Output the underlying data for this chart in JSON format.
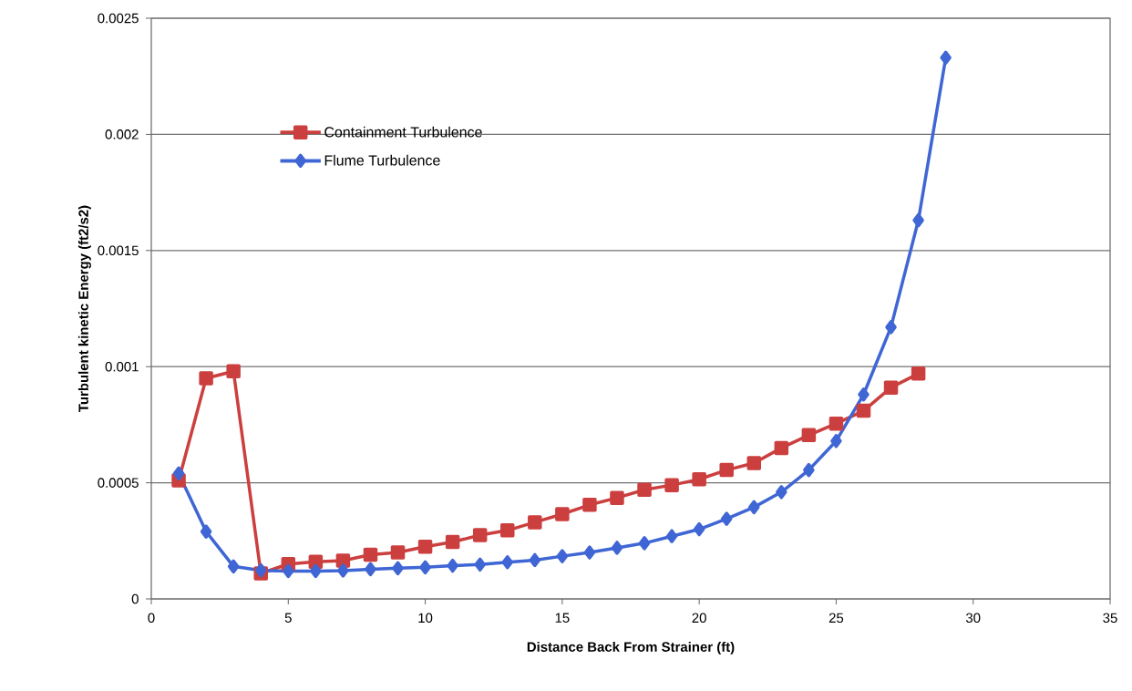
{
  "chart_data": {
    "type": "line",
    "xlabel": "Distance Back From Strainer (ft)",
    "ylabel": "Turbulent kinetic Energy (ft2/s2)",
    "xlim": [
      0,
      35
    ],
    "xticks": [
      0,
      5,
      10,
      15,
      20,
      25,
      30,
      35
    ],
    "ylim": [
      0,
      0.0025
    ],
    "yticks": [
      0,
      0.0005,
      0.001,
      0.0015,
      0.002,
      0.0025
    ],
    "grid": "y",
    "legend": "top left",
    "line_style": "solid",
    "series": [
      {
        "name": "Containment Turbulence",
        "color": "#cc3f3f",
        "marker": "square",
        "x": [
          1,
          2,
          3,
          4,
          5,
          6,
          7,
          8,
          9,
          10,
          11,
          12,
          13,
          14,
          15,
          16,
          17,
          18,
          19,
          20,
          21,
          22,
          23,
          24,
          25,
          26,
          27,
          28
        ],
        "values": [
          0.00051,
          0.00095,
          0.00098,
          0.00011,
          0.00015,
          0.00016,
          0.000165,
          0.00019,
          0.0002,
          0.000225,
          0.000245,
          0.000275,
          0.000295,
          0.00033,
          0.000365,
          0.000405,
          0.000435,
          0.00047,
          0.00049,
          0.000515,
          0.000555,
          0.000585,
          0.00065,
          0.000705,
          0.000755,
          0.00081,
          0.00091,
          0.00097
        ]
      },
      {
        "name": "Flume Turbulence",
        "color": "#3f66d4",
        "marker": "diamond",
        "x": [
          1,
          2,
          3,
          4,
          5,
          6,
          7,
          8,
          9,
          10,
          11,
          12,
          13,
          14,
          15,
          16,
          17,
          18,
          19,
          20,
          21,
          22,
          23,
          24,
          25,
          26,
          27,
          28,
          29
        ],
        "values": [
          0.00054,
          0.00029,
          0.00014,
          0.000123,
          0.00012,
          0.00012,
          0.000122,
          0.000128,
          0.000132,
          0.000136,
          0.000143,
          0.000148,
          0.000158,
          0.000167,
          0.000184,
          0.0002,
          0.00022,
          0.00024,
          0.00027,
          0.0003,
          0.000345,
          0.000395,
          0.00046,
          0.000555,
          0.00068,
          0.00088,
          0.00117,
          0.00163,
          0.00233
        ]
      }
    ]
  }
}
